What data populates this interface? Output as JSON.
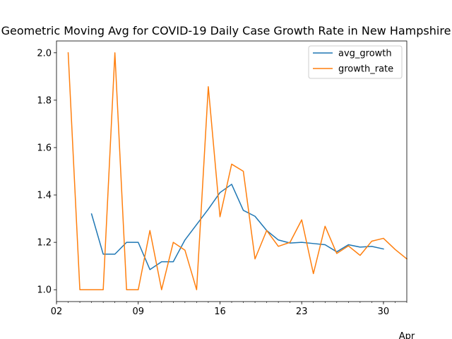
{
  "chart_data": {
    "type": "line",
    "title": "Geometric Moving Avg for COVID-19 Daily Case Growth Rate in New Hampshire",
    "xlabel": "",
    "ylabel": "",
    "x_ticks": [
      "02",
      "09",
      "16",
      "23",
      "30"
    ],
    "x_secondary_label": "Apr",
    "x_range": [
      2,
      32
    ],
    "ylim": [
      0.95,
      2.05
    ],
    "y_ticks": [
      "1.0",
      "1.2",
      "1.4",
      "1.6",
      "1.8",
      "2.0"
    ],
    "legend_position": "upper right",
    "grid": false,
    "series": [
      {
        "name": "avg_growth",
        "color": "#1f77b4",
        "points": [
          [
            5,
            1.32
          ],
          [
            6,
            1.15
          ],
          [
            7,
            1.15
          ],
          [
            8,
            1.2
          ],
          [
            9,
            1.2
          ],
          [
            10,
            1.085
          ],
          [
            11,
            1.118
          ],
          [
            12,
            1.118
          ],
          [
            13,
            1.21
          ],
          [
            14,
            1.275
          ],
          [
            15,
            1.34
          ],
          [
            16,
            1.41
          ],
          [
            17,
            1.445
          ],
          [
            18,
            1.335
          ],
          [
            19,
            1.31
          ],
          [
            20,
            1.25
          ],
          [
            21,
            1.21
          ],
          [
            22,
            1.197
          ],
          [
            23,
            1.2
          ],
          [
            24,
            1.195
          ],
          [
            25,
            1.19
          ],
          [
            26,
            1.16
          ],
          [
            27,
            1.19
          ],
          [
            28,
            1.18
          ],
          [
            29,
            1.183
          ],
          [
            30,
            1.172
          ]
        ]
      },
      {
        "name": "growth_rate",
        "color": "#ff7f0e",
        "points": [
          [
            3,
            2.0
          ],
          [
            4,
            1.0
          ],
          [
            5,
            1.0
          ],
          [
            6,
            1.0
          ],
          [
            7,
            2.0
          ],
          [
            8,
            1.0
          ],
          [
            9,
            1.0
          ],
          [
            10,
            1.25
          ],
          [
            11,
            1.0
          ],
          [
            12,
            1.2
          ],
          [
            13,
            1.167
          ],
          [
            14,
            1.0
          ],
          [
            15,
            1.857
          ],
          [
            16,
            1.308
          ],
          [
            17,
            1.53
          ],
          [
            18,
            1.5
          ],
          [
            19,
            1.13
          ],
          [
            20,
            1.25
          ],
          [
            21,
            1.183
          ],
          [
            22,
            1.2
          ],
          [
            23,
            1.295
          ],
          [
            24,
            1.068
          ],
          [
            25,
            1.268
          ],
          [
            26,
            1.153
          ],
          [
            27,
            1.185
          ],
          [
            28,
            1.145
          ],
          [
            29,
            1.205
          ],
          [
            30,
            1.217
          ],
          [
            31,
            1.17
          ],
          [
            32,
            1.13
          ]
        ]
      }
    ]
  }
}
